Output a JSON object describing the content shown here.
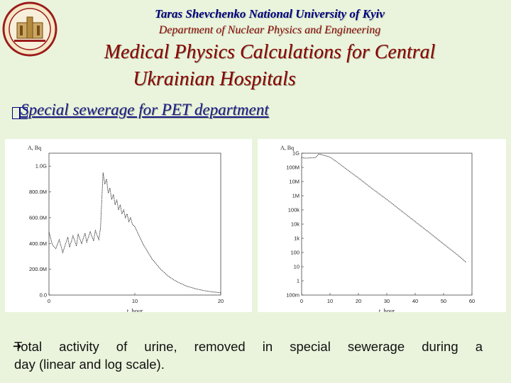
{
  "header": {
    "university": "Taras Shevchenko National University of Kyiv",
    "department": "Department of Nuclear Physics and Engineering",
    "title_line1": "Medical Physics Calculations  for Central",
    "title_line2": "Ukrainian Hospitals"
  },
  "section": {
    "title": "Special sewerage for PET department"
  },
  "caption": {
    "line1": "Total activity of urine, removed  in special sewerage during a",
    "line2": "day (linear and  log scale)."
  },
  "colors": {
    "background": "#eaf4dc",
    "header_navy": "#000080",
    "title_red": "#8b0000"
  },
  "chart_data": [
    {
      "type": "line",
      "scale": "linear",
      "ylabel": "A, Bq",
      "xlabel": "t, hour",
      "xlim": [
        0,
        20
      ],
      "ylim": [
        0,
        1100000000.0
      ],
      "xticks": [
        "0",
        "10",
        "20"
      ],
      "yticks": [
        {
          "value": 0,
          "label": "0.0"
        },
        {
          "value": 200000000.0,
          "label": "200.0M"
        },
        {
          "value": 400000000.0,
          "label": "400.0M"
        },
        {
          "value": 600000000.0,
          "label": "600.0M"
        },
        {
          "value": 800000000.0,
          "label": "800.0M"
        },
        {
          "value": 1000000000.0,
          "label": "1.0G"
        }
      ],
      "x": [
        0,
        0.4,
        0.8,
        1.2,
        1.6,
        2.2,
        2.4,
        2.8,
        3.2,
        3.4,
        3.8,
        4.2,
        4.4,
        4.8,
        5.2,
        5.4,
        5.8,
        6.0,
        6.3,
        6.5,
        6.7,
        6.9,
        7.1,
        7.3,
        7.5,
        7.7,
        7.9,
        8.1,
        8.3,
        8.5,
        8.7,
        8.9,
        9.1,
        9.3,
        9.5,
        9.7,
        10,
        11,
        12,
        13,
        14,
        15,
        16,
        17,
        18,
        19,
        20
      ],
      "y": [
        490000000.0,
        390000000.0,
        360000000.0,
        430000000.0,
        330000000.0,
        450000000.0,
        370000000.0,
        460000000.0,
        380000000.0,
        470000000.0,
        400000000.0,
        480000000.0,
        410000000.0,
        490000000.0,
        420000000.0,
        500000000.0,
        430000000.0,
        520000000.0,
        950000000.0,
        860000000.0,
        900000000.0,
        790000000.0,
        830000000.0,
        740000000.0,
        780000000.0,
        700000000.0,
        740000000.0,
        660000000.0,
        700000000.0,
        630000000.0,
        660000000.0,
        600000000.0,
        630000000.0,
        570000000.0,
        600000000.0,
        550000000.0,
        530000000.0,
        390000000.0,
        280000000.0,
        200000000.0,
        140000000.0,
        100000000.0,
        70000000.0,
        50000000.0,
        35000000.0,
        25000000.0,
        18000000.0
      ]
    },
    {
      "type": "line",
      "scale": "log",
      "ylabel": "A, Bq",
      "xlabel": "t, hour",
      "xlim": [
        0,
        60
      ],
      "ylim_log10": [
        -1,
        9
      ],
      "xticks": [
        "0",
        "10",
        "20",
        "30",
        "40",
        "50",
        "60"
      ],
      "yticks": [
        {
          "log": 9,
          "label": "1G"
        },
        {
          "log": 8,
          "label": "100M"
        },
        {
          "log": 7,
          "label": "10M"
        },
        {
          "log": 6,
          "label": "1M"
        },
        {
          "log": 5,
          "label": "100k"
        },
        {
          "log": 4,
          "label": "10k"
        },
        {
          "log": 3,
          "label": "1k"
        },
        {
          "log": 2,
          "label": "100"
        },
        {
          "log": 1,
          "label": "10"
        },
        {
          "log": 0,
          "label": "1"
        },
        {
          "log": -1,
          "label": "100m"
        }
      ],
      "x": [
        0,
        1,
        2,
        3,
        4,
        5,
        6,
        7,
        8,
        9,
        10,
        12,
        16,
        20,
        25,
        30,
        35,
        40,
        45,
        50,
        55,
        58
      ],
      "y": [
        500000000.0,
        450000000.0,
        450000000.0,
        470000000.0,
        480000000.0,
        500000000.0,
        850000000.0,
        800000000.0,
        680000000.0,
        620000000.0,
        530000000.0,
        280000000.0,
        70000000.0,
        18000000.0,
        3000000.0,
        550000.0,
        90000.0,
        15000.0,
        2500.0,
        400.0,
        65.0,
        20.0
      ]
    }
  ]
}
